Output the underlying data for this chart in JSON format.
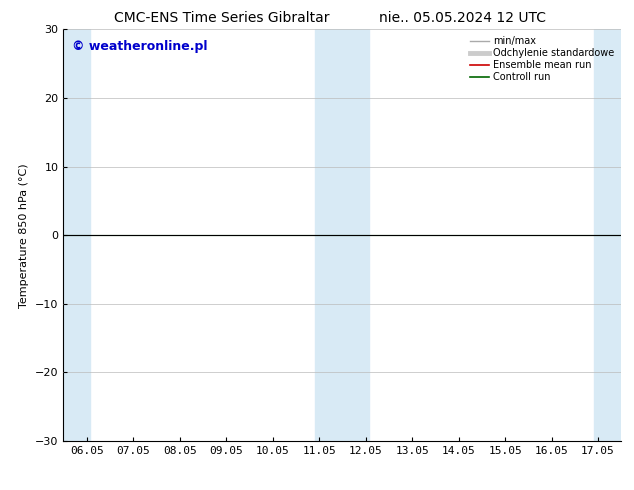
{
  "title_left": "CMC-ENS Time Series Gibraltar",
  "title_right": "nie.. 05.05.2024 12 UTC",
  "ylabel": "Temperature 850 hPa (°C)",
  "watermark": "© weatheronline.pl",
  "watermark_color": "#0000cc",
  "ylim": [
    -30,
    30
  ],
  "yticks": [
    -30,
    -20,
    -10,
    0,
    10,
    20,
    30
  ],
  "x_labels": [
    "06.05",
    "07.05",
    "08.05",
    "09.05",
    "10.05",
    "11.05",
    "12.05",
    "13.05",
    "14.05",
    "15.05",
    "16.05",
    "17.05"
  ],
  "x_positions": [
    0,
    1,
    2,
    3,
    4,
    5,
    6,
    7,
    8,
    9,
    10,
    11
  ],
  "shaded_bands": [
    {
      "xmin": -0.5,
      "xmax": 0.08
    },
    {
      "xmin": 4.92,
      "xmax": 6.08
    },
    {
      "xmin": 10.92,
      "xmax": 11.5
    }
  ],
  "shade_color": "#d8eaf5",
  "line_y": 0.0,
  "line_color_black": "#000000",
  "line_color_green": "#006600",
  "background_color": "#ffffff",
  "legend_items": [
    {
      "label": "min/max",
      "color": "#aaaaaa",
      "lw": 1.0
    },
    {
      "label": "Odchylenie standardowe",
      "color": "#cccccc",
      "lw": 3.5
    },
    {
      "label": "Ensemble mean run",
      "color": "#cc0000",
      "lw": 1.2
    },
    {
      "label": "Controll run",
      "color": "#006600",
      "lw": 1.2
    }
  ],
  "title_fontsize": 10,
  "axis_fontsize": 8,
  "tick_fontsize": 8,
  "watermark_fontsize": 9
}
